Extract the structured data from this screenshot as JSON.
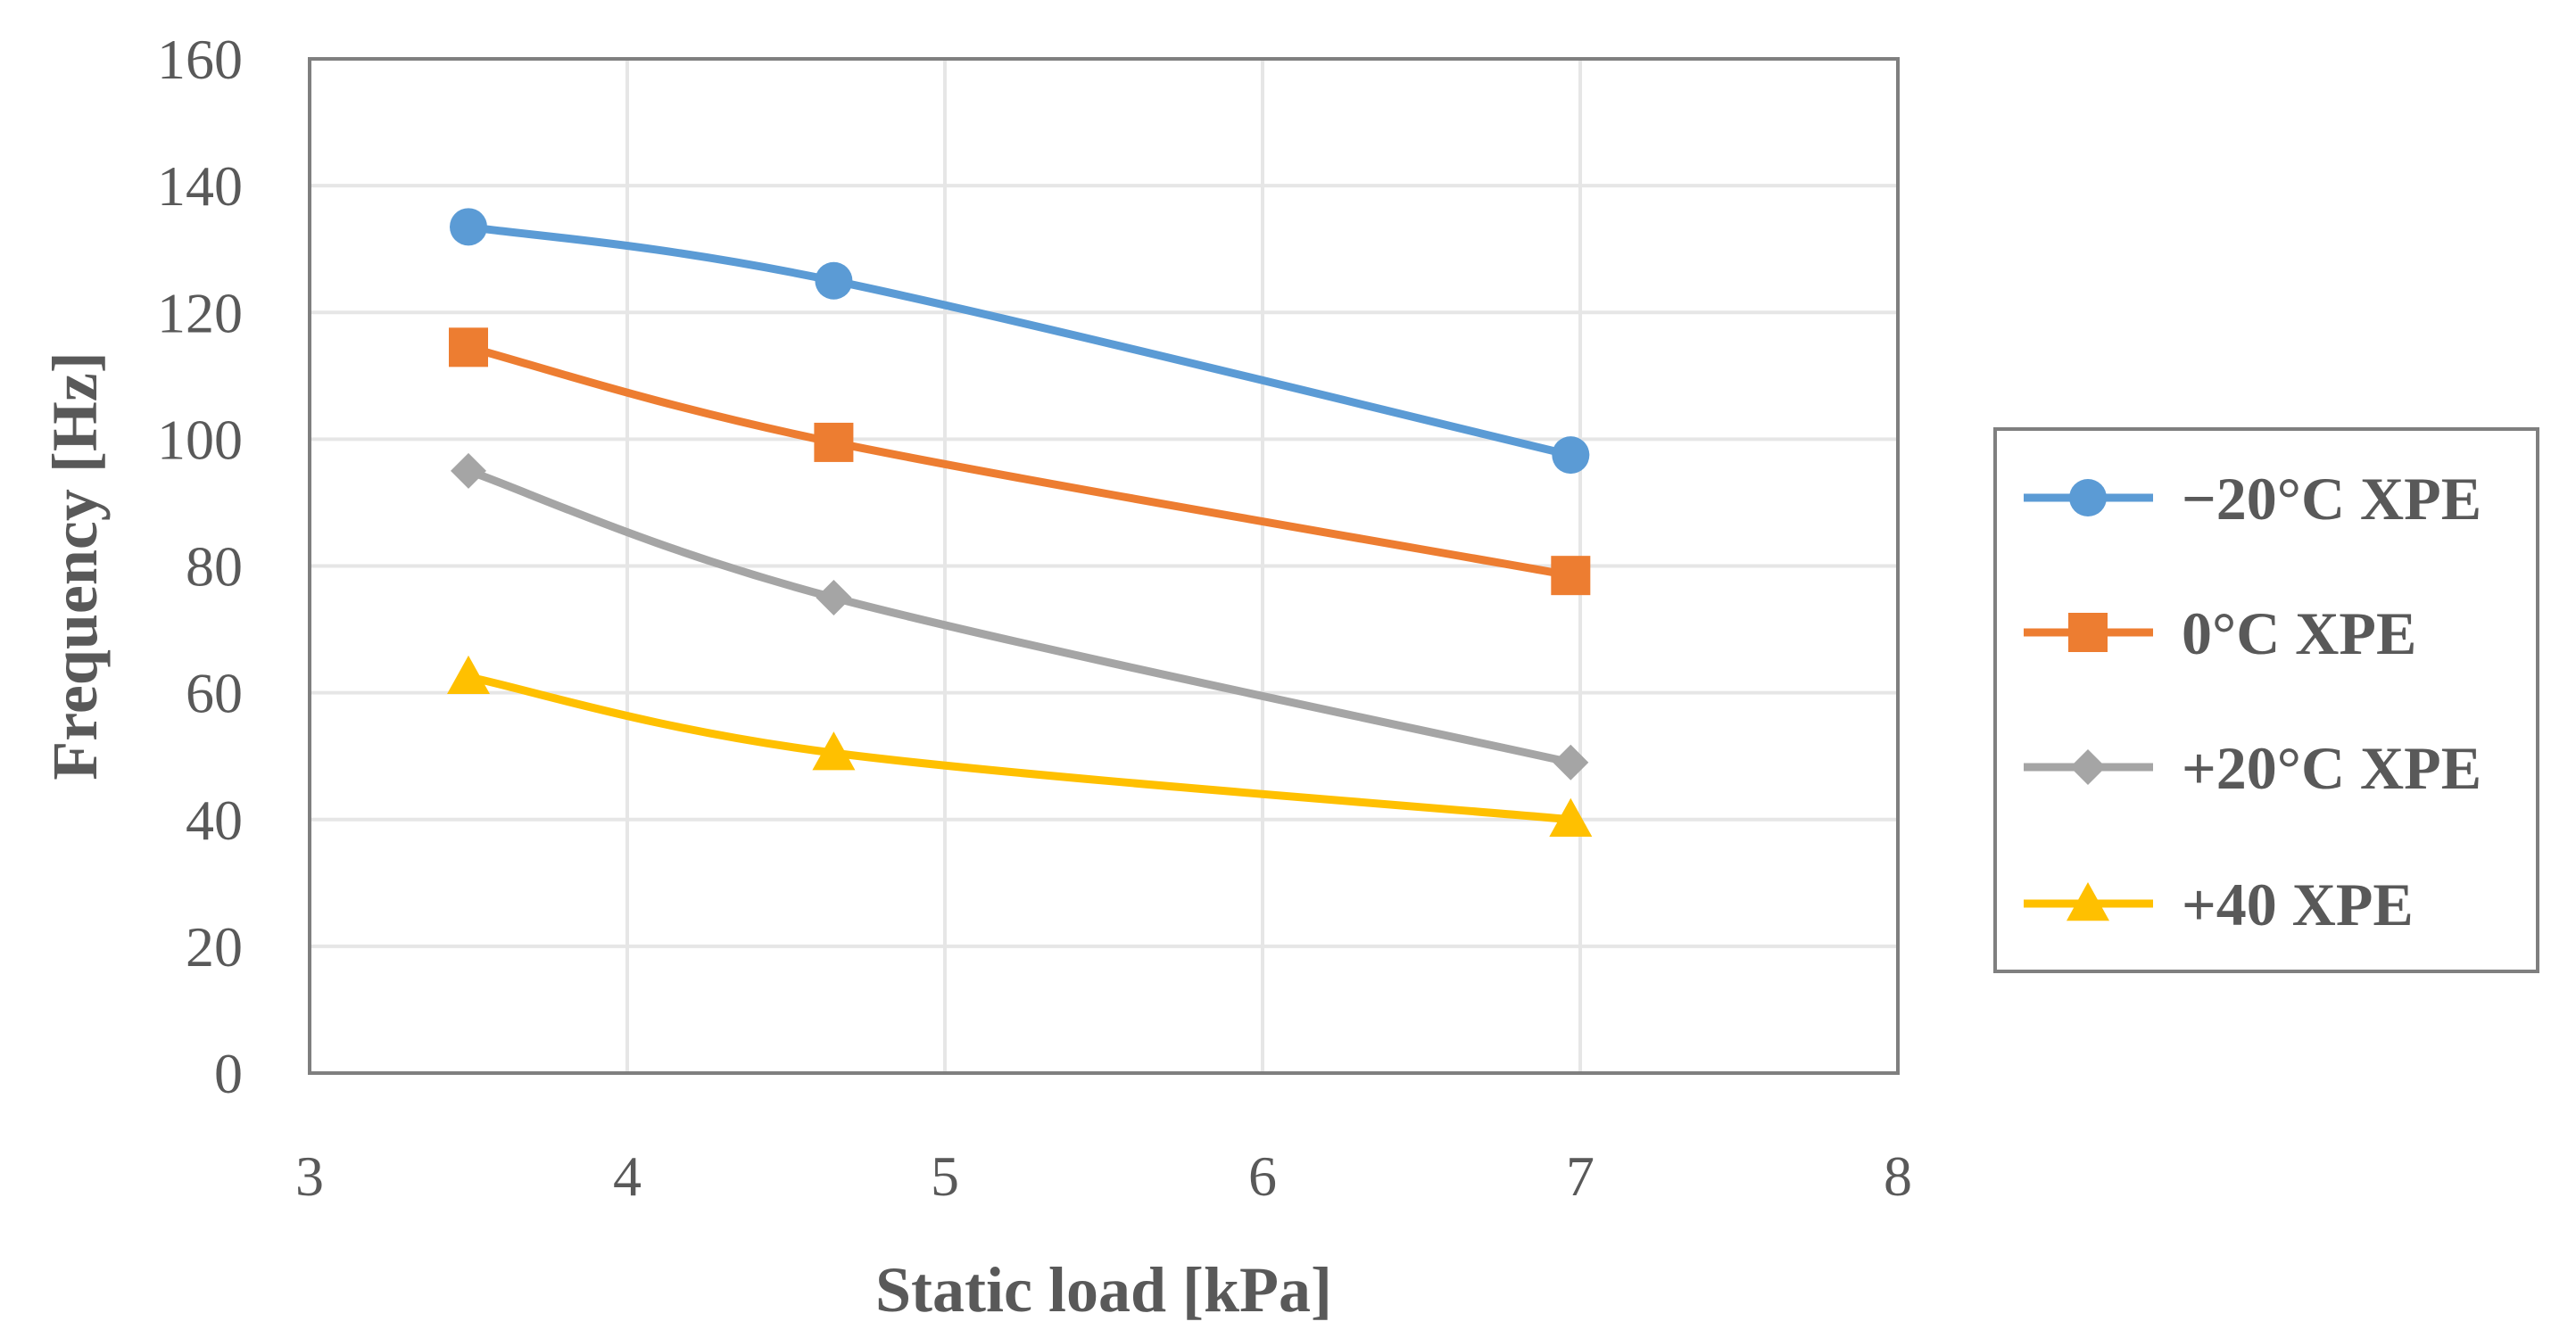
{
  "chart_data": {
    "type": "line",
    "title": "",
    "xlabel": "Static load [kPa]",
    "ylabel": "Frequency [Hz]",
    "xlim": [
      3,
      8
    ],
    "ylim": [
      0,
      160
    ],
    "xticks": [
      3,
      4,
      5,
      6,
      7,
      8
    ],
    "yticks": [
      0,
      20,
      40,
      60,
      80,
      100,
      120,
      140,
      160
    ],
    "x_tick_labels": [
      "3",
      "4",
      "5",
      "6",
      "7",
      "8"
    ],
    "y_tick_labels": [
      "0",
      "20",
      "40",
      "60",
      "80",
      "100",
      "120",
      "140",
      "160"
    ],
    "grid": true,
    "legend_position": "right",
    "series": [
      {
        "name": "−20°C XPE",
        "color": "#5B9BD5",
        "marker": "circle",
        "x": [
          3.5,
          4.65,
          6.97
        ],
        "y": [
          133.5,
          125,
          97.5
        ]
      },
      {
        "name": "0°C XPE",
        "color": "#ED7D31",
        "marker": "square",
        "x": [
          3.5,
          4.65,
          6.97
        ],
        "y": [
          114.5,
          99.5,
          78.5
        ]
      },
      {
        "name": "+20°C XPE",
        "color": "#A5A5A5",
        "marker": "diamond",
        "x": [
          3.5,
          4.65,
          6.97
        ],
        "y": [
          95,
          75,
          49
        ]
      },
      {
        "name": "+40 XPE",
        "color": "#FFC000",
        "marker": "triangle",
        "x": [
          3.5,
          4.65,
          6.97
        ],
        "y": [
          62.5,
          50.5,
          40
        ]
      }
    ]
  }
}
